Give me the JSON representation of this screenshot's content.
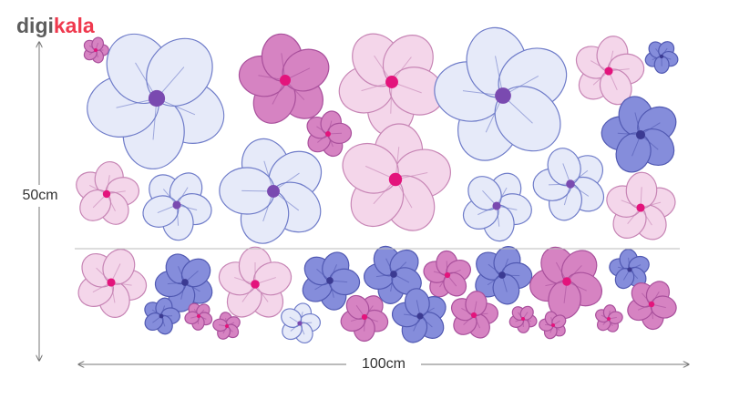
{
  "logo": {
    "part1": "digi",
    "part2": "kala"
  },
  "dimensions": {
    "height": "50cm",
    "width": "100cm"
  }
}
